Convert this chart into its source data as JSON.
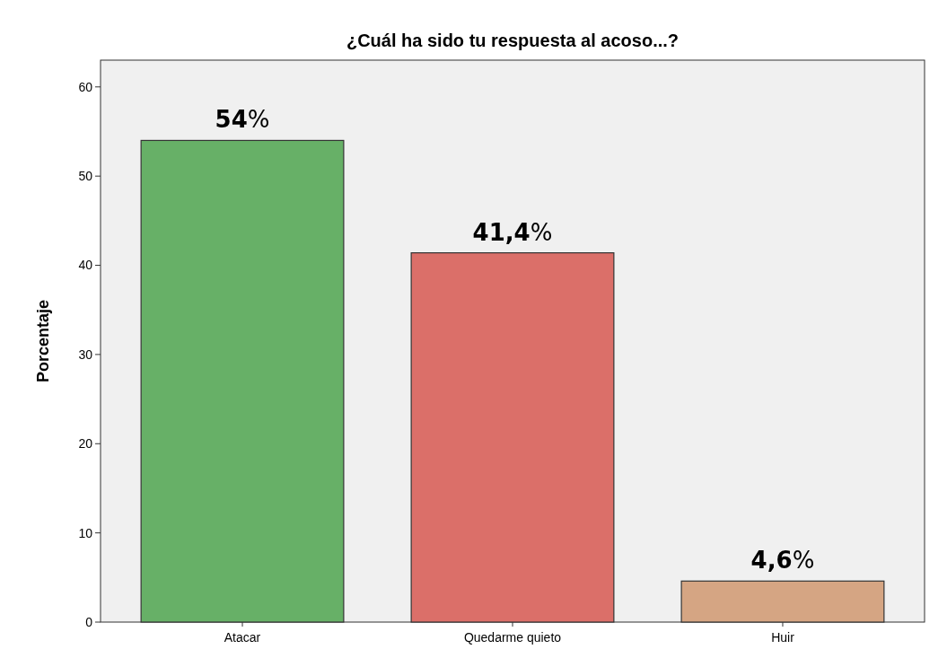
{
  "chart_data": {
    "type": "bar",
    "title": "¿Cuál ha sido tu respuesta al acoso...?",
    "ylabel": "Porcentaje",
    "categories": [
      "Atacar",
      "Quedarme quieto",
      "Huir"
    ],
    "values": [
      54,
      41.4,
      4.6
    ],
    "colors": [
      "#67b067",
      "#db6f69",
      "#d5a583"
    ],
    "value_labels": [
      "54%",
      "41,4%",
      "4,6%"
    ],
    "ylim": [
      0,
      63
    ],
    "yticks": [
      0,
      10,
      20,
      30,
      40,
      50,
      60
    ]
  }
}
